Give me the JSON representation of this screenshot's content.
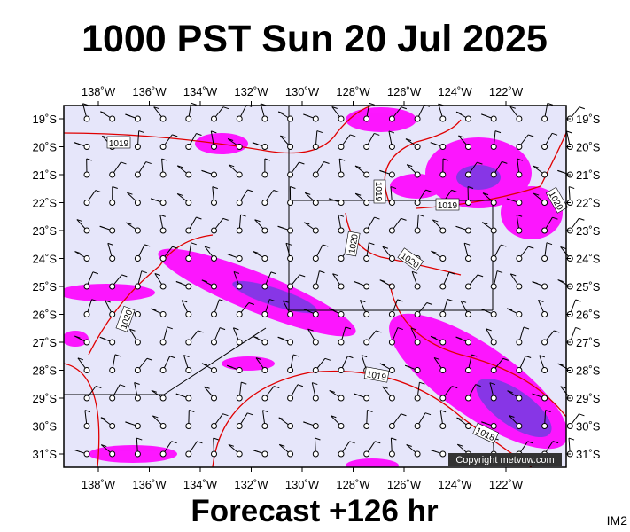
{
  "header": {
    "title": "1000 PST Sun 20 Jul 2025"
  },
  "map": {
    "longitude_labels": [
      "138˚W",
      "136˚W",
      "134˚W",
      "132˚W",
      "130˚W",
      "128˚W",
      "126˚W",
      "124˚W",
      "122˚W"
    ],
    "latitude_labels": [
      "19˚S",
      "20˚S",
      "21˚S",
      "22˚S",
      "23˚S",
      "24˚S",
      "25˚S",
      "26˚S",
      "27˚S",
      "28˚S",
      "29˚S",
      "30˚S",
      "31˚S"
    ],
    "isobar_labels": [
      "1019",
      "1019",
      "1019",
      "1020",
      "1020",
      "1020",
      "1019",
      "1018",
      "1020"
    ],
    "copyright": "Copyright metvuw.com"
  },
  "footer": {
    "forecast": "Forecast +126 hr",
    "image_id": "IM2"
  }
}
